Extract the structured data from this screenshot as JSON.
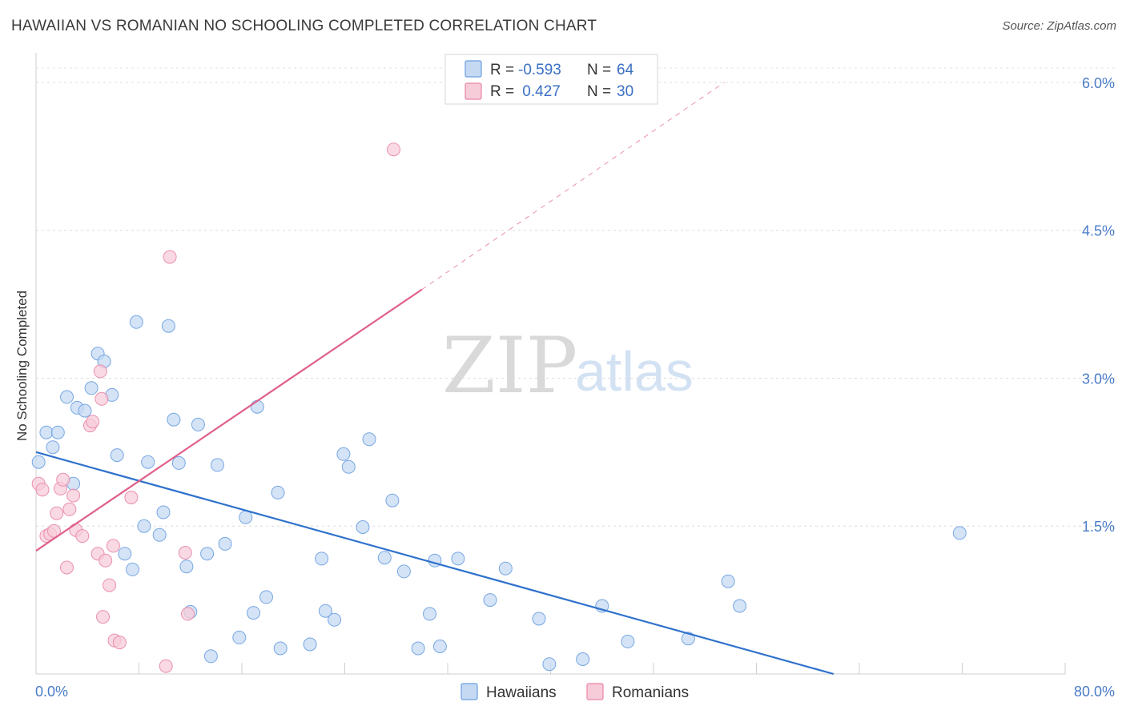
{
  "header": {
    "title": "HAWAIIAN VS ROMANIAN NO SCHOOLING COMPLETED CORRELATION CHART",
    "source": "Source: ZipAtlas.com"
  },
  "chart_data": {
    "type": "scatter",
    "title": "HAWAIIAN VS ROMANIAN NO SCHOOLING COMPLETED CORRELATION CHART",
    "xlabel": "",
    "ylabel": "No Schooling Completed",
    "xlim": [
      0,
      80
    ],
    "ylim": [
      0,
      6.3
    ],
    "x_tick_labels": [
      "0.0%",
      "80.0%"
    ],
    "y_ticks": [
      1.5,
      3.0,
      4.5,
      6.0
    ],
    "y_tick_labels": [
      "1.5%",
      "3.0%",
      "4.5%",
      "6.0%"
    ],
    "grid": true,
    "colors": {
      "hawaiians": "#6a9fe0",
      "hawaiians_fill": "#c6d9f3",
      "hawaiians_line": "#2f72cc",
      "romanians": "#e886a6",
      "romanians_fill": "#f7ccd9",
      "romanians_line": "#e0608a"
    },
    "legend": {
      "rows": [
        {
          "r_label": "R = ",
          "r_value": "-0.593",
          "n_label": "N = ",
          "n_value": "64"
        },
        {
          "r_label": "R = ",
          "r_value": " 0.427",
          "n_label": "N = ",
          "n_value": "30"
        }
      ]
    },
    "series": [
      {
        "name": "Hawaiians",
        "r": -0.593,
        "n": 64,
        "trend": {
          "x0": 0.0,
          "y0": 2.25,
          "x1": 62.0,
          "y1": 0.0
        },
        "points": [
          [
            0.2,
            2.15
          ],
          [
            0.8,
            2.45
          ],
          [
            1.3,
            2.3
          ],
          [
            1.7,
            2.45
          ],
          [
            2.4,
            2.81
          ],
          [
            2.9,
            1.93
          ],
          [
            3.2,
            2.7
          ],
          [
            3.8,
            2.67
          ],
          [
            4.3,
            2.9
          ],
          [
            4.8,
            3.25
          ],
          [
            5.3,
            3.17
          ],
          [
            5.9,
            2.83
          ],
          [
            6.3,
            2.22
          ],
          [
            6.9,
            1.22
          ],
          [
            7.5,
            1.06
          ],
          [
            7.8,
            3.57
          ],
          [
            8.4,
            1.5
          ],
          [
            8.7,
            2.15
          ],
          [
            9.6,
            1.41
          ],
          [
            9.9,
            1.64
          ],
          [
            10.3,
            3.53
          ],
          [
            10.7,
            2.58
          ],
          [
            11.1,
            2.14
          ],
          [
            11.7,
            1.09
          ],
          [
            12.0,
            0.63
          ],
          [
            12.6,
            2.53
          ],
          [
            13.3,
            1.22
          ],
          [
            13.6,
            0.18
          ],
          [
            14.1,
            2.12
          ],
          [
            14.7,
            1.32
          ],
          [
            15.8,
            0.37
          ],
          [
            16.3,
            1.59
          ],
          [
            16.9,
            0.62
          ],
          [
            17.2,
            2.71
          ],
          [
            17.9,
            0.78
          ],
          [
            18.8,
            1.84
          ],
          [
            19.0,
            0.26
          ],
          [
            21.3,
            0.3
          ],
          [
            22.2,
            1.17
          ],
          [
            22.5,
            0.64
          ],
          [
            23.2,
            0.55
          ],
          [
            23.9,
            2.23
          ],
          [
            24.3,
            2.1
          ],
          [
            25.4,
            1.49
          ],
          [
            25.9,
            2.38
          ],
          [
            27.1,
            1.18
          ],
          [
            27.7,
            1.76
          ],
          [
            28.6,
            1.04
          ],
          [
            29.7,
            0.26
          ],
          [
            30.6,
            0.61
          ],
          [
            31.0,
            1.15
          ],
          [
            31.4,
            0.28
          ],
          [
            32.8,
            1.17
          ],
          [
            35.3,
            0.75
          ],
          [
            36.5,
            1.07
          ],
          [
            39.1,
            0.56
          ],
          [
            39.9,
            0.1
          ],
          [
            42.5,
            0.15
          ],
          [
            44.0,
            0.69
          ],
          [
            46.0,
            0.33
          ],
          [
            50.7,
            0.36
          ],
          [
            53.8,
            0.94
          ],
          [
            54.7,
            0.69
          ],
          [
            71.8,
            1.43
          ]
        ]
      },
      {
        "name": "Romanians",
        "r": 0.427,
        "n": 30,
        "trend": {
          "x0": 0.0,
          "y0": 1.25,
          "x1": 30.0,
          "y1": 3.9,
          "dash_to_x": 53.5,
          "dash_to_y": 6.0
        },
        "points": [
          [
            0.2,
            1.93
          ],
          [
            0.5,
            1.87
          ],
          [
            0.8,
            1.4
          ],
          [
            1.1,
            1.42
          ],
          [
            1.4,
            1.45
          ],
          [
            1.6,
            1.63
          ],
          [
            1.9,
            1.88
          ],
          [
            2.1,
            1.97
          ],
          [
            2.4,
            1.08
          ],
          [
            2.6,
            1.67
          ],
          [
            2.9,
            1.81
          ],
          [
            3.1,
            1.46
          ],
          [
            3.6,
            1.4
          ],
          [
            4.2,
            2.52
          ],
          [
            4.4,
            2.56
          ],
          [
            4.8,
            1.22
          ],
          [
            5.0,
            3.07
          ],
          [
            5.1,
            2.79
          ],
          [
            5.2,
            0.58
          ],
          [
            5.4,
            1.15
          ],
          [
            5.7,
            0.9
          ],
          [
            6.0,
            1.3
          ],
          [
            6.1,
            0.34
          ],
          [
            6.5,
            0.32
          ],
          [
            7.4,
            1.79
          ],
          [
            10.1,
            0.08
          ],
          [
            10.4,
            4.23
          ],
          [
            11.6,
            1.23
          ],
          [
            11.8,
            0.61
          ],
          [
            27.8,
            5.32
          ]
        ]
      }
    ],
    "bottom_legend": [
      "Hawaiians",
      "Romanians"
    ],
    "watermark": {
      "zip": "ZIP",
      "atlas": "atlas"
    }
  }
}
